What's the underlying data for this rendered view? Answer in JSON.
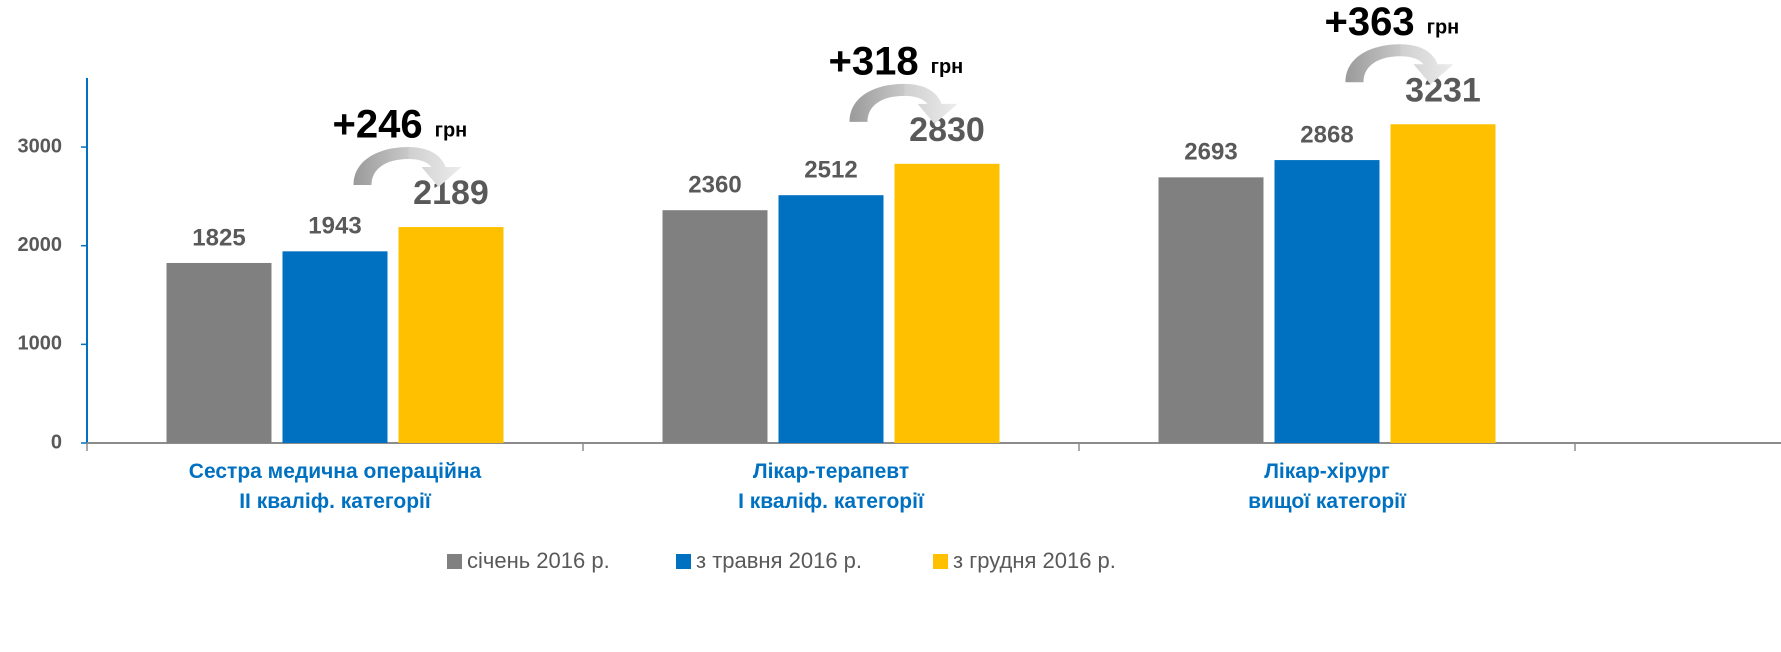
{
  "chart_data": {
    "type": "bar",
    "categories": [
      "Сестра медична операційна\nII кваліф. категорії",
      "Лікар-терапевт\nI кваліф. категорії",
      "Лікар-хірург\nвищої категорії"
    ],
    "series": [
      {
        "name": "січень 2016 р.",
        "color": "#808080",
        "values": [
          1825,
          2360,
          2693
        ]
      },
      {
        "name": "з травня 2016 р.",
        "color": "#0070c0",
        "values": [
          1943,
          2512,
          2868
        ]
      },
      {
        "name": "з грудня 2016 р.",
        "color": "#ffc000",
        "values": [
          2189,
          2830,
          3231
        ]
      }
    ],
    "annotations": [
      {
        "text": "+246",
        "unit": "грн"
      },
      {
        "text": "+318",
        "unit": "грн"
      },
      {
        "text": "+363",
        "unit": "грн"
      }
    ],
    "ylim": [
      0,
      3700
    ],
    "yticks": [
      0,
      1000,
      2000,
      3000
    ],
    "legend": "bottom"
  }
}
